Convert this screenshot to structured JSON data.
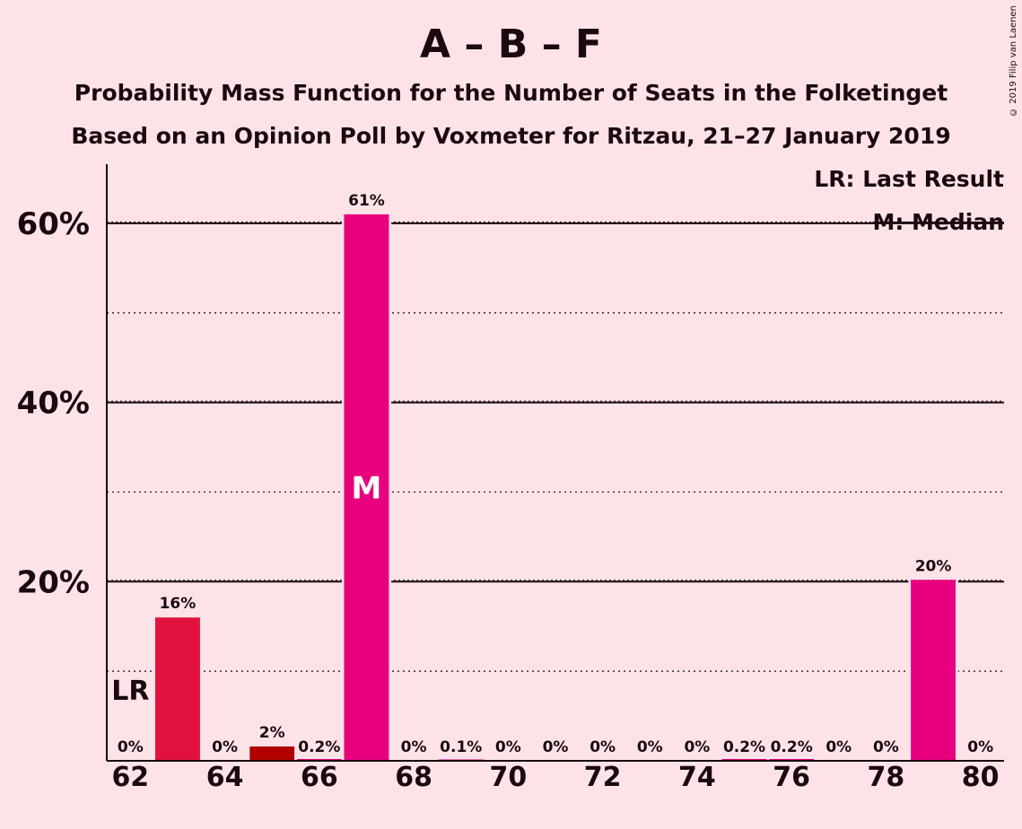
{
  "chart_data": {
    "type": "bar",
    "title": "A – B – F",
    "subtitle": "Probability Mass Function for the Number of Seats in the Folketinget",
    "subtitle2": "Based on an Opinion Poll by Voxmeter for Ritzau, 21–27 January 2019",
    "credit": "© 2019 Filip van Laenen",
    "legend": [
      "LR: Last Result",
      "M: Median"
    ],
    "legend_position": "top-right",
    "x": [
      62,
      63,
      64,
      65,
      66,
      67,
      68,
      69,
      70,
      71,
      72,
      73,
      74,
      75,
      76,
      77,
      78,
      79,
      80
    ],
    "values": [
      0,
      16,
      0,
      1.6,
      0.2,
      61,
      0,
      0.1,
      0,
      0,
      0,
      0,
      0,
      0.2,
      0.2,
      0,
      0,
      20.2,
      0
    ],
    "labels": [
      "0%",
      "16%",
      "0%",
      "2%",
      "0.2%",
      "61%",
      "0%",
      "0.1%",
      "0%",
      "0%",
      "0%",
      "0%",
      "0%",
      "0.2%",
      "0.2%",
      "0%",
      "0%",
      "20%",
      "0%"
    ],
    "colors": [
      "#E8007E",
      "#E2123F",
      "#E8007E",
      "#B00000",
      "#E8007E",
      "#E8007E",
      "#E8007E",
      "#E8007E",
      "#E8007E",
      "#E8007E",
      "#E8007E",
      "#E8007E",
      "#E8007E",
      "#E8007E",
      "#E8007E",
      "#E8007E",
      "#E8007E",
      "#E8007E",
      "#E8007E"
    ],
    "xticks": [
      62,
      64,
      66,
      68,
      70,
      72,
      74,
      76,
      78,
      80
    ],
    "yticks": [
      20,
      40,
      60
    ],
    "ytick_labels": [
      "20%",
      "40%",
      "60%"
    ],
    "minor_gridlines": [
      10,
      30,
      50
    ],
    "ylim": [
      0,
      66.6
    ],
    "xlim": [
      61.5,
      80.5
    ],
    "last_result": {
      "x": 62,
      "label": "LR"
    },
    "median": {
      "x": 67,
      "label": "M"
    },
    "grid": true
  }
}
